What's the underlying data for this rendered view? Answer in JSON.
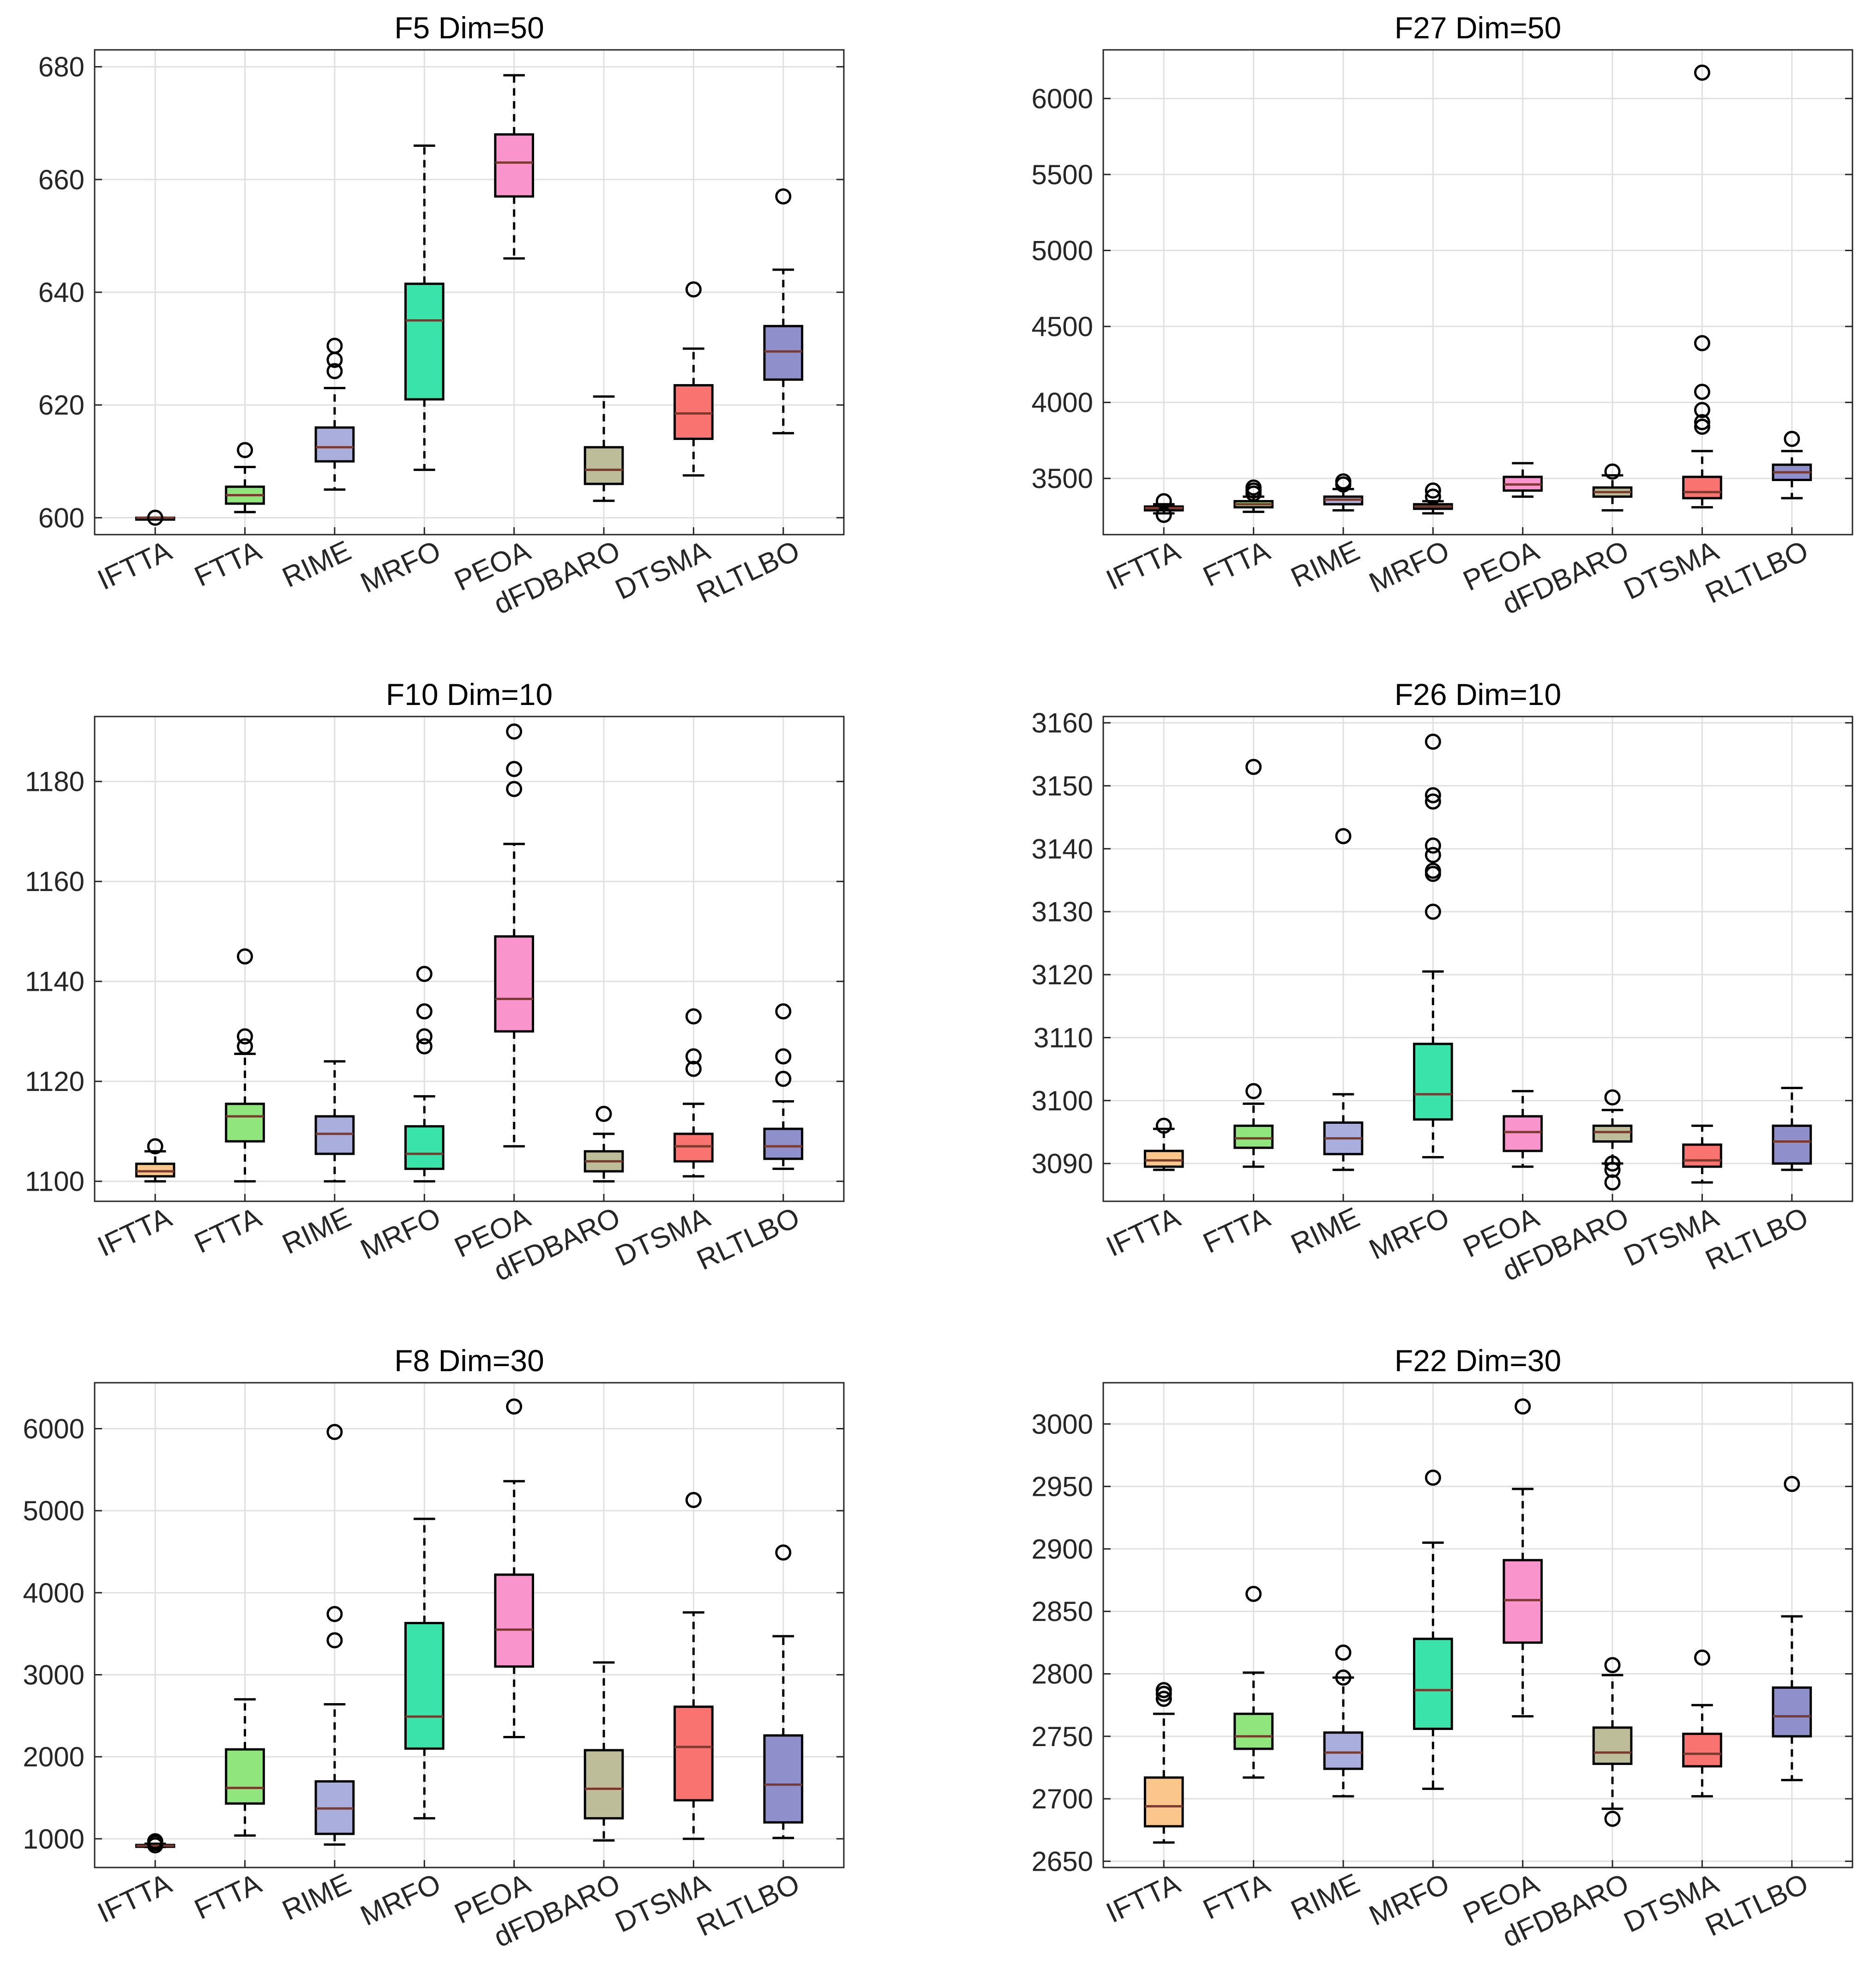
{
  "chart_data": [
    {
      "type": "box",
      "title": "F5 Dim=50",
      "categories": [
        "IFTTA",
        "FTTA",
        "RIME",
        "MRFO",
        "PEOA",
        "dFDBARO",
        "DTSMA",
        "RLTLBO"
      ],
      "ylim": [
        597,
        683
      ],
      "yticks": [
        600,
        620,
        640,
        660,
        680
      ],
      "grid": true,
      "boxes": [
        {
          "min": 600,
          "q1": 600,
          "median": 600,
          "q3": 600,
          "max": 600,
          "outliers": [
            600
          ]
        },
        {
          "min": 601,
          "q1": 602.5,
          "median": 604,
          "q3": 605.5,
          "max": 609,
          "outliers": [
            612
          ]
        },
        {
          "min": 605,
          "q1": 610,
          "median": 612.5,
          "q3": 616,
          "max": 623,
          "outliers": [
            626,
            628,
            630.5
          ]
        },
        {
          "min": 608.5,
          "q1": 621,
          "median": 635,
          "q3": 641.5,
          "max": 666,
          "outliers": []
        },
        {
          "min": 646,
          "q1": 657,
          "median": 663,
          "q3": 668,
          "max": 678.5,
          "outliers": []
        },
        {
          "min": 603,
          "q1": 606,
          "median": 608.5,
          "q3": 612.5,
          "max": 621.5,
          "outliers": []
        },
        {
          "min": 607.5,
          "q1": 614,
          "median": 618.5,
          "q3": 623.5,
          "max": 630,
          "outliers": [
            640.5
          ]
        },
        {
          "min": 615,
          "q1": 624.5,
          "median": 629.5,
          "q3": 634,
          "max": 644,
          "outliers": [
            657
          ]
        }
      ]
    },
    {
      "type": "box",
      "title": "F27 Dim=50",
      "categories": [
        "IFTTA",
        "FTTA",
        "RIME",
        "MRFO",
        "PEOA",
        "dFDBARO",
        "DTSMA",
        "RLTLBO"
      ],
      "ylim": [
        3130,
        6320
      ],
      "yticks": [
        3500,
        4000,
        4500,
        5000,
        5500,
        6000
      ],
      "grid": true,
      "boxes": [
        {
          "min": 3270,
          "q1": 3290,
          "median": 3305,
          "q3": 3315,
          "max": 3330,
          "outliers": [
            3260,
            3350
          ]
        },
        {
          "min": 3280,
          "q1": 3310,
          "median": 3330,
          "q3": 3350,
          "max": 3380,
          "outliers": [
            3400,
            3420,
            3440
          ]
        },
        {
          "min": 3290,
          "q1": 3330,
          "median": 3360,
          "q3": 3380,
          "max": 3430,
          "outliers": [
            3460,
            3480
          ]
        },
        {
          "min": 3270,
          "q1": 3300,
          "median": 3315,
          "q3": 3330,
          "max": 3350,
          "outliers": [
            3380,
            3420
          ]
        },
        {
          "min": 3380,
          "q1": 3420,
          "median": 3460,
          "q3": 3510,
          "max": 3600,
          "outliers": []
        },
        {
          "min": 3290,
          "q1": 3380,
          "median": 3410,
          "q3": 3440,
          "max": 3520,
          "outliers": [
            3545
          ]
        },
        {
          "min": 3310,
          "q1": 3370,
          "median": 3410,
          "q3": 3510,
          "max": 3680,
          "outliers": [
            3840,
            3870,
            3950,
            4070,
            4390,
            6170
          ]
        },
        {
          "min": 3370,
          "q1": 3490,
          "median": 3540,
          "q3": 3590,
          "max": 3680,
          "outliers": [
            3760
          ]
        }
      ]
    },
    {
      "type": "box",
      "title": "F10 Dim=10",
      "categories": [
        "IFTTA",
        "FTTA",
        "RIME",
        "MRFO",
        "PEOA",
        "dFDBARO",
        "DTSMA",
        "RLTLBO"
      ],
      "ylim": [
        1096,
        1193
      ],
      "yticks": [
        1100,
        1120,
        1140,
        1160,
        1180
      ],
      "grid": true,
      "boxes": [
        {
          "min": 1100,
          "q1": 1101,
          "median": 1102,
          "q3": 1103.5,
          "max": 1106,
          "outliers": [
            1107
          ]
        },
        {
          "min": 1100,
          "q1": 1108,
          "median": 1113,
          "q3": 1115.5,
          "max": 1125.5,
          "outliers": [
            1127,
            1129,
            1145
          ]
        },
        {
          "min": 1100,
          "q1": 1105.5,
          "median": 1109.5,
          "q3": 1113,
          "max": 1124,
          "outliers": []
        },
        {
          "min": 1100,
          "q1": 1102.5,
          "median": 1105.5,
          "q3": 1111,
          "max": 1117,
          "outliers": [
            1127,
            1129,
            1134,
            1141.5
          ]
        },
        {
          "min": 1107,
          "q1": 1130,
          "median": 1136.5,
          "q3": 1149,
          "max": 1167.5,
          "outliers": [
            1178.5,
            1182.5,
            1190
          ]
        },
        {
          "min": 1100,
          "q1": 1102,
          "median": 1104,
          "q3": 1106,
          "max": 1109.5,
          "outliers": [
            1113.5
          ]
        },
        {
          "min": 1101,
          "q1": 1104,
          "median": 1107,
          "q3": 1109.5,
          "max": 1115.5,
          "outliers": [
            1122.5,
            1125,
            1133
          ]
        },
        {
          "min": 1102.5,
          "q1": 1104.5,
          "median": 1107,
          "q3": 1110.5,
          "max": 1116,
          "outliers": [
            1120.5,
            1125,
            1134
          ]
        }
      ]
    },
    {
      "type": "box",
      "title": "F26 Dim=10",
      "categories": [
        "IFTTA",
        "FTTA",
        "RIME",
        "MRFO",
        "PEOA",
        "dFDBARO",
        "DTSMA",
        "RLTLBO"
      ],
      "ylim": [
        3084,
        3161
      ],
      "yticks": [
        3090,
        3100,
        3110,
        3120,
        3130,
        3140,
        3150,
        3160
      ],
      "grid": true,
      "boxes": [
        {
          "min": 3089,
          "q1": 3089.5,
          "median": 3090.5,
          "q3": 3092,
          "max": 3095.5,
          "outliers": [
            3096
          ]
        },
        {
          "min": 3089.5,
          "q1": 3092.5,
          "median": 3094,
          "q3": 3096,
          "max": 3099.5,
          "outliers": [
            3101.5,
            3153
          ]
        },
        {
          "min": 3089,
          "q1": 3091.5,
          "median": 3094,
          "q3": 3096.5,
          "max": 3101,
          "outliers": [
            3142
          ]
        },
        {
          "min": 3091,
          "q1": 3097,
          "median": 3101,
          "q3": 3109,
          "max": 3120.5,
          "outliers": [
            3130,
            3136,
            3136.5,
            3139,
            3140.5,
            3147.5,
            3148.5,
            3157
          ]
        },
        {
          "min": 3089.5,
          "q1": 3092,
          "median": 3095,
          "q3": 3097.5,
          "max": 3101.5,
          "outliers": []
        },
        {
          "min": 3090,
          "q1": 3093.5,
          "median": 3095,
          "q3": 3096,
          "max": 3098.5,
          "outliers": [
            3087,
            3089,
            3090,
            3100.5
          ]
        },
        {
          "min": 3087,
          "q1": 3089.5,
          "median": 3090.5,
          "q3": 3093,
          "max": 3096,
          "outliers": []
        },
        {
          "min": 3089,
          "q1": 3090,
          "median": 3093.5,
          "q3": 3096,
          "max": 3102,
          "outliers": []
        }
      ]
    },
    {
      "type": "box",
      "title": "F8 Dim=30",
      "categories": [
        "IFTTA",
        "FTTA",
        "RIME",
        "MRFO",
        "PEOA",
        "dFDBARO",
        "DTSMA",
        "RLTLBO"
      ],
      "ylim": [
        650,
        6560
      ],
      "yticks": [
        1000,
        2000,
        3000,
        4000,
        5000,
        6000
      ],
      "grid": true,
      "boxes": [
        {
          "min": 900,
          "q1": 905,
          "median": 915,
          "q3": 925,
          "max": 940,
          "outliers": [
            920,
            950,
            970
          ]
        },
        {
          "min": 1040,
          "q1": 1430,
          "median": 1620,
          "q3": 2090,
          "max": 2700,
          "outliers": []
        },
        {
          "min": 930,
          "q1": 1060,
          "median": 1370,
          "q3": 1700,
          "max": 2640,
          "outliers": [
            3420,
            3740,
            5960
          ]
        },
        {
          "min": 1250,
          "q1": 2100,
          "median": 2490,
          "q3": 3630,
          "max": 4900,
          "outliers": []
        },
        {
          "min": 2240,
          "q1": 3100,
          "median": 3550,
          "q3": 4220,
          "max": 5360,
          "outliers": [
            6270
          ]
        },
        {
          "min": 980,
          "q1": 1250,
          "median": 1610,
          "q3": 2080,
          "max": 3150,
          "outliers": []
        },
        {
          "min": 1000,
          "q1": 1470,
          "median": 2120,
          "q3": 2610,
          "max": 3760,
          "outliers": [
            5130
          ]
        },
        {
          "min": 1010,
          "q1": 1200,
          "median": 1660,
          "q3": 2260,
          "max": 3470,
          "outliers": [
            4490
          ]
        }
      ]
    },
    {
      "type": "box",
      "title": "F22 Dim=30",
      "categories": [
        "IFTTA",
        "FTTA",
        "RIME",
        "MRFO",
        "PEOA",
        "dFDBARO",
        "DTSMA",
        "RLTLBO"
      ],
      "ylim": [
        2645,
        3033
      ],
      "yticks": [
        2650,
        2700,
        2750,
        2800,
        2850,
        2900,
        2950,
        3000
      ],
      "grid": true,
      "boxes": [
        {
          "min": 2665,
          "q1": 2678,
          "median": 2694,
          "q3": 2717,
          "max": 2768,
          "outliers": [
            2780,
            2784,
            2787
          ]
        },
        {
          "min": 2717,
          "q1": 2740,
          "median": 2750,
          "q3": 2768,
          "max": 2801,
          "outliers": [
            2864
          ]
        },
        {
          "min": 2702,
          "q1": 2724,
          "median": 2737,
          "q3": 2753,
          "max": 2797,
          "outliers": [
            2797,
            2817
          ]
        },
        {
          "min": 2708,
          "q1": 2756,
          "median": 2787,
          "q3": 2828,
          "max": 2905,
          "outliers": [
            2957
          ]
        },
        {
          "min": 2766,
          "q1": 2825,
          "median": 2859,
          "q3": 2891,
          "max": 2948,
          "outliers": [
            3014
          ]
        },
        {
          "min": 2692,
          "q1": 2728,
          "median": 2737,
          "q3": 2757,
          "max": 2799,
          "outliers": [
            2684,
            2807
          ]
        },
        {
          "min": 2702,
          "q1": 2726,
          "median": 2736,
          "q3": 2752,
          "max": 2775,
          "outliers": [
            2813
          ]
        },
        {
          "min": 2715,
          "q1": 2750,
          "median": 2766,
          "q3": 2789,
          "max": 2846,
          "outliers": [
            2952
          ]
        }
      ]
    }
  ],
  "series_colors": [
    "#FAC68C",
    "#90E57C",
    "#AAAEDD",
    "#39E3AA",
    "#FA94CC",
    "#BDBD99",
    "#F97370",
    "#8E8FCB"
  ]
}
